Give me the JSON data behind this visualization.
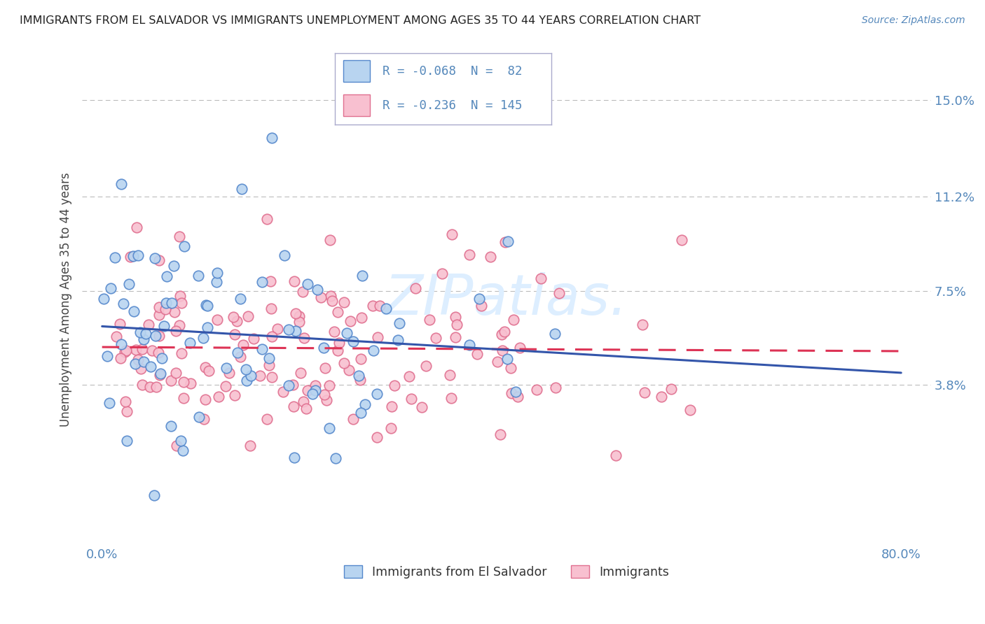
{
  "title": "IMMIGRANTS FROM EL SALVADOR VS IMMIGRANTS UNEMPLOYMENT AMONG AGES 35 TO 44 YEARS CORRELATION CHART",
  "source": "Source: ZipAtlas.com",
  "ylabel": "Unemployment Among Ages 35 to 44 years",
  "xlim": [
    -0.02,
    0.83
  ],
  "ylim": [
    -0.025,
    0.168
  ],
  "yticks": [
    0.038,
    0.075,
    0.112,
    0.15
  ],
  "ytick_labels": [
    "3.8%",
    "7.5%",
    "11.2%",
    "15.0%"
  ],
  "xticks": [
    0.0,
    0.1,
    0.2,
    0.3,
    0.4,
    0.5,
    0.6,
    0.7,
    0.8
  ],
  "xtick_labels": [
    "0.0%",
    "",
    "",
    "",
    "",
    "",
    "",
    "",
    "80.0%"
  ],
  "series1_name": "Immigrants from El Salvador",
  "series1_color": "#b8d4f0",
  "series1_edge_color": "#5588cc",
  "series1_R": -0.068,
  "series1_N": 82,
  "series2_name": "Immigrants",
  "series2_color": "#f8c0d0",
  "series2_edge_color": "#e07090",
  "series2_R": -0.236,
  "series2_N": 145,
  "trend1_color": "#3355aa",
  "trend2_color": "#dd3355",
  "watermark_color": "#ddeeff",
  "background_color": "#ffffff",
  "grid_color": "#bbbbbb",
  "label_color": "#5588bb",
  "title_color": "#222222",
  "ylabel_color": "#444444"
}
